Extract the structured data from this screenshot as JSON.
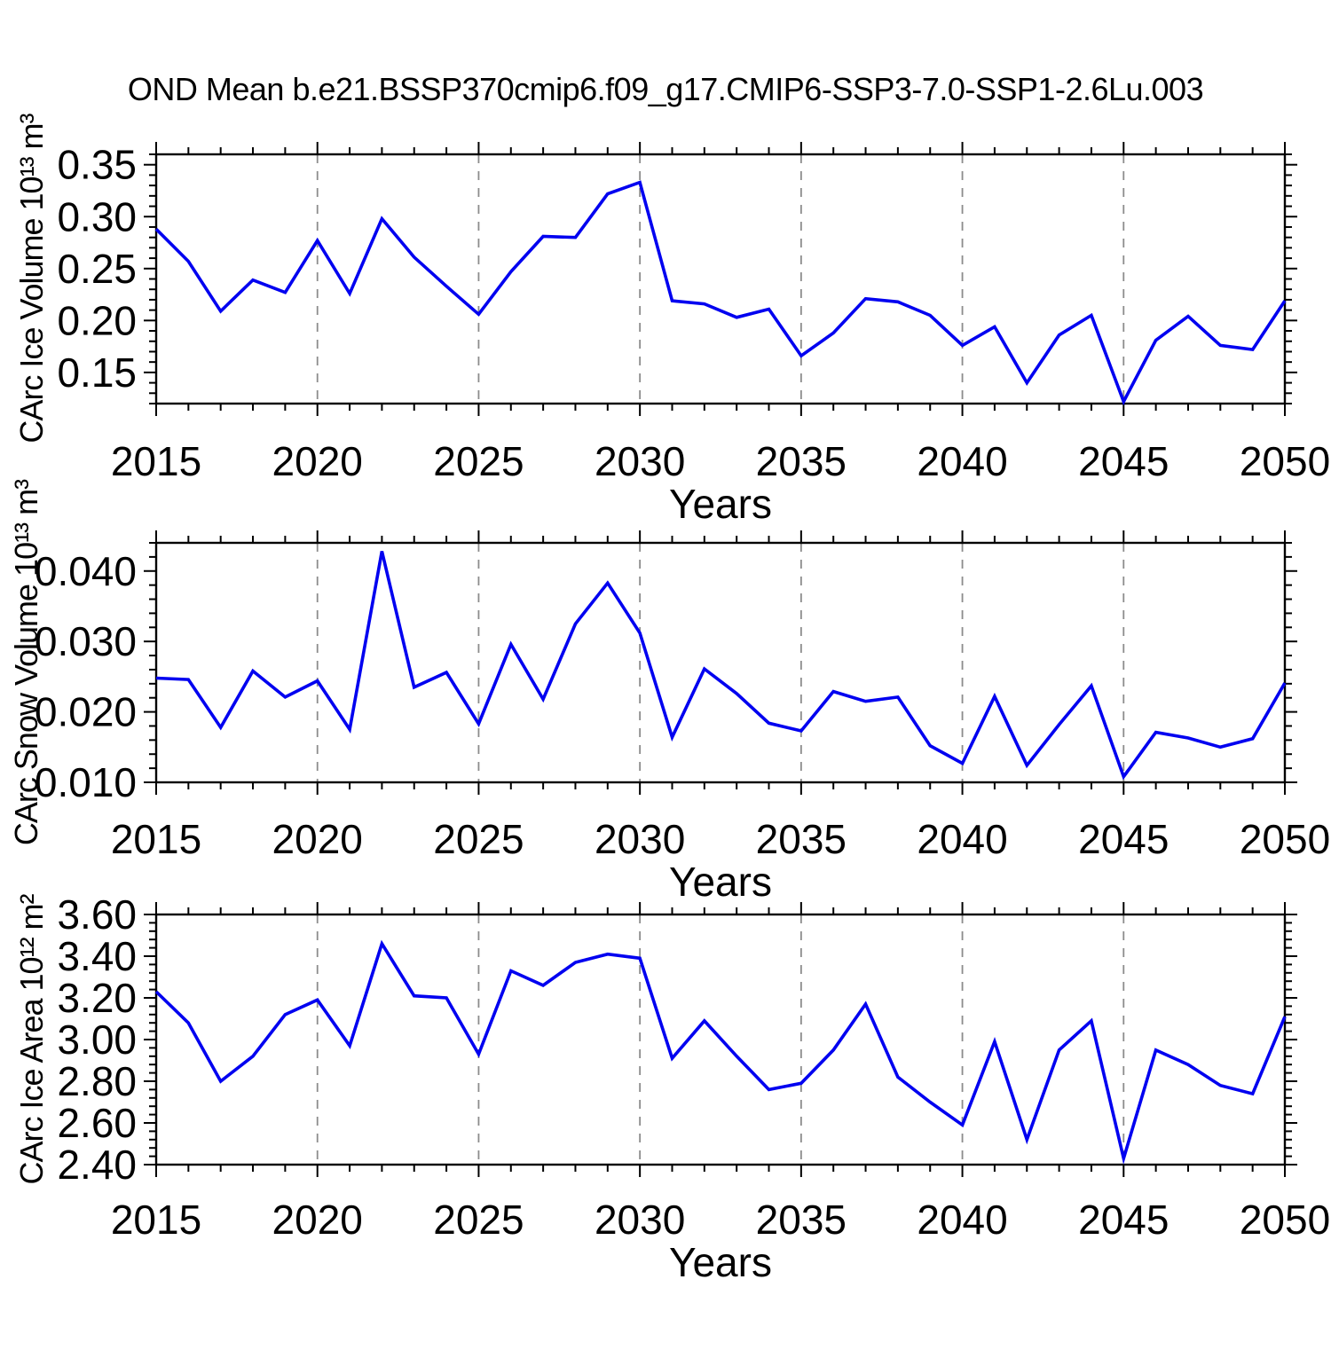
{
  "title": "OND Mean b.e21.BSSP370cmip6.f09_g17.CMIP6-SSP3-7.0-SSP1-2.6Lu.003",
  "chart_data": {
    "type": "line",
    "title": "OND Mean b.e21.BSSP370cmip6.f09_g17.CMIP6-SSP3-7.0-SSP1-2.6Lu.003",
    "xlabel": "Years",
    "xlim": [
      2015,
      2050
    ],
    "x_major_ticks": [
      2015,
      2020,
      2025,
      2030,
      2035,
      2040,
      2045,
      2050
    ],
    "x_major_tick_labels": [
      "2015",
      "2020",
      "2025",
      "2030",
      "2035",
      "2040",
      "2045",
      "2050"
    ],
    "x_minor_step": 1,
    "x_gridlines": [
      2020,
      2025,
      2030,
      2035,
      2040,
      2045
    ],
    "grid": true,
    "grid_style": "dashed-vertical",
    "legend": "none",
    "line_color": "#0000f0",
    "grid_color": "#8c8c8c",
    "axis_color": "#000000",
    "x": [
      2015,
      2016,
      2017,
      2018,
      2019,
      2020,
      2021,
      2022,
      2023,
      2024,
      2025,
      2026,
      2027,
      2028,
      2029,
      2030,
      2031,
      2032,
      2033,
      2034,
      2035,
      2036,
      2037,
      2038,
      2039,
      2040,
      2041,
      2042,
      2043,
      2044,
      2045,
      2046,
      2047,
      2048,
      2049,
      2050
    ],
    "panels": [
      {
        "name": "ice_volume",
        "ylabel": "CArc Ice Volume 10¹³ m³",
        "ylim": [
          0.12,
          0.36
        ],
        "yticks": [
          0.15,
          0.2,
          0.25,
          0.3,
          0.35
        ],
        "ytick_labels": [
          "0.15",
          "0.20",
          "0.25",
          "0.30",
          "0.35"
        ],
        "y_minor_step": 0.01,
        "values": [
          0.288,
          0.257,
          0.209,
          0.239,
          0.227,
          0.277,
          0.226,
          0.298,
          0.261,
          0.233,
          0.206,
          0.247,
          0.281,
          0.28,
          0.322,
          0.333,
          0.219,
          0.216,
          0.203,
          0.211,
          0.166,
          0.188,
          0.221,
          0.218,
          0.205,
          0.176,
          0.194,
          0.14,
          0.186,
          0.205,
          0.122,
          0.181,
          0.204,
          0.176,
          0.172,
          0.219
        ]
      },
      {
        "name": "snow_volume",
        "ylabel": "CArc Snow Volume 10¹³ m³",
        "ylim": [
          0.01,
          0.044
        ],
        "yticks": [
          0.01,
          0.02,
          0.03,
          0.04
        ],
        "ytick_labels": [
          "0.010",
          "0.020",
          "0.030",
          "0.040"
        ],
        "y_minor_step": 0.002,
        "values": [
          0.0248,
          0.0246,
          0.0178,
          0.0258,
          0.0221,
          0.0244,
          0.0175,
          0.0428,
          0.0235,
          0.0256,
          0.0183,
          0.0296,
          0.0218,
          0.0325,
          0.0383,
          0.0312,
          0.0164,
          0.0261,
          0.0226,
          0.0184,
          0.0173,
          0.0229,
          0.0215,
          0.0221,
          0.0152,
          0.0127,
          0.0222,
          0.0124,
          0.0182,
          0.0237,
          0.0108,
          0.0171,
          0.0163,
          0.015,
          0.0162,
          0.0241
        ]
      },
      {
        "name": "ice_area",
        "ylabel": "CArc Ice Area 10¹² m²",
        "ylim": [
          2.4,
          3.6
        ],
        "yticks": [
          2.4,
          2.6,
          2.8,
          3.0,
          3.2,
          3.4,
          3.6
        ],
        "ytick_labels": [
          "2.40",
          "2.60",
          "2.80",
          "3.00",
          "3.20",
          "3.40",
          "3.60"
        ],
        "y_minor_step": 0.04,
        "values": [
          3.23,
          3.08,
          2.8,
          2.92,
          3.12,
          3.19,
          2.97,
          3.46,
          3.21,
          3.2,
          2.93,
          3.33,
          3.26,
          3.37,
          3.41,
          3.39,
          2.91,
          3.09,
          2.92,
          2.76,
          2.79,
          2.95,
          3.17,
          2.82,
          2.7,
          2.59,
          2.99,
          2.52,
          2.95,
          3.09,
          2.43,
          2.95,
          2.88,
          2.78,
          2.74,
          3.11
        ]
      }
    ]
  }
}
